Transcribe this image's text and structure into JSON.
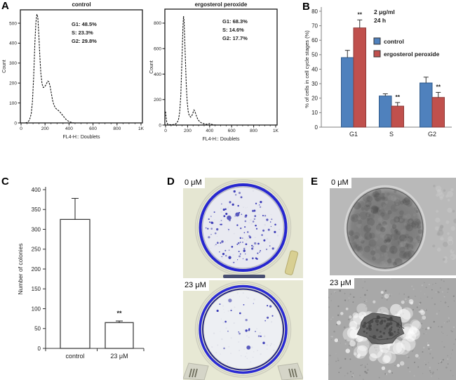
{
  "figure": {
    "panel_labels": {
      "A": "A",
      "B": "B",
      "C": "C",
      "D": "D",
      "E": "E"
    }
  },
  "chart_data": [
    {
      "id": "flow_control",
      "type": "area",
      "title": "control",
      "xlabel": "FL4-H:: Doublets",
      "ylabel": "Count",
      "xlim": [
        0,
        1000
      ],
      "ylim": [
        0,
        567
      ],
      "xticks": [
        {
          "v": 0,
          "label": "0"
        },
        {
          "v": 200,
          "label": "200"
        },
        {
          "v": 400,
          "label": "400"
        },
        {
          "v": 600,
          "label": "600"
        },
        {
          "v": 800,
          "label": "800"
        },
        {
          "v": 1000,
          "label": "1K"
        }
      ],
      "yticks": [
        0,
        100,
        200,
        300,
        400,
        500
      ],
      "annotations": [
        "G1: 48.5%",
        "S: 23.3%",
        "G2: 29.8%"
      ],
      "curve": [
        [
          38,
          0
        ],
        [
          55,
          4
        ],
        [
          70,
          14
        ],
        [
          85,
          45
        ],
        [
          95,
          105
        ],
        [
          105,
          230
        ],
        [
          115,
          400
        ],
        [
          124,
          505
        ],
        [
          132,
          545
        ],
        [
          140,
          530
        ],
        [
          148,
          445
        ],
        [
          156,
          340
        ],
        [
          165,
          250
        ],
        [
          175,
          196
        ],
        [
          185,
          178
        ],
        [
          196,
          180
        ],
        [
          208,
          192
        ],
        [
          222,
          210
        ],
        [
          232,
          206
        ],
        [
          242,
          184
        ],
        [
          252,
          150
        ],
        [
          262,
          116
        ],
        [
          272,
          94
        ],
        [
          285,
          76
        ],
        [
          298,
          68
        ],
        [
          312,
          62
        ],
        [
          328,
          52
        ],
        [
          344,
          40
        ],
        [
          360,
          28
        ],
        [
          376,
          17
        ],
        [
          392,
          10
        ],
        [
          408,
          5
        ],
        [
          424,
          2
        ],
        [
          440,
          0
        ]
      ]
    },
    {
      "id": "flow_ergosterol_peroxide",
      "type": "area",
      "title": "ergosterol peroxide",
      "xlabel": "FL4-H:: Doublets",
      "ylabel": "Count",
      "xlim": [
        0,
        1000
      ],
      "ylim": [
        0,
        910
      ],
      "xticks": [
        {
          "v": 0,
          "label": "0"
        },
        {
          "v": 200,
          "label": "200"
        },
        {
          "v": 400,
          "label": "400"
        },
        {
          "v": 600,
          "label": "600"
        },
        {
          "v": 800,
          "label": "800"
        },
        {
          "v": 1000,
          "label": "1K"
        }
      ],
      "yticks": [
        0,
        200,
        400,
        600,
        800
      ],
      "annotations": [
        "G1: 68.3%",
        "S: 14.6%",
        "G2: 17.7%"
      ],
      "curve": [
        [
          0,
          105
        ],
        [
          4,
          70
        ],
        [
          10,
          25
        ],
        [
          18,
          8
        ],
        [
          30,
          4
        ],
        [
          50,
          3
        ],
        [
          70,
          4
        ],
        [
          90,
          8
        ],
        [
          105,
          18
        ],
        [
          118,
          45
        ],
        [
          128,
          100
        ],
        [
          138,
          230
        ],
        [
          146,
          430
        ],
        [
          152,
          610
        ],
        [
          158,
          770
        ],
        [
          163,
          855
        ],
        [
          168,
          820
        ],
        [
          174,
          670
        ],
        [
          180,
          510
        ],
        [
          188,
          320
        ],
        [
          196,
          185
        ],
        [
          205,
          108
        ],
        [
          215,
          74
        ],
        [
          228,
          62
        ],
        [
          240,
          76
        ],
        [
          250,
          100
        ],
        [
          258,
          118
        ],
        [
          266,
          108
        ],
        [
          275,
          84
        ],
        [
          285,
          60
        ],
        [
          295,
          42
        ],
        [
          308,
          28
        ],
        [
          322,
          18
        ],
        [
          338,
          12
        ],
        [
          355,
          8
        ],
        [
          372,
          6
        ],
        [
          388,
          9
        ],
        [
          400,
          11
        ],
        [
          412,
          7
        ],
        [
          425,
          4
        ],
        [
          440,
          1
        ],
        [
          458,
          0
        ]
      ]
    },
    {
      "id": "cell_cycle_distribution",
      "type": "bar",
      "categories": [
        "G1",
        "S",
        "G2"
      ],
      "series": [
        {
          "name": "control",
          "color": "#4f81bd",
          "border": "#2f5a8c",
          "values": [
            48,
            21.5,
            30.5
          ],
          "errors": [
            5,
            1.5,
            4
          ],
          "sig": [
            "",
            "",
            ""
          ]
        },
        {
          "name": "ergosterol peroxide",
          "color": "#c0504d",
          "border": "#8e3a38",
          "values": [
            68.5,
            14.5,
            20.5
          ],
          "errors": [
            5.5,
            2.5,
            3.5
          ],
          "sig": [
            "**",
            "**",
            "**"
          ]
        }
      ],
      "ylabel": "% of cells in cell cycle stages (%)",
      "ylim": [
        0,
        80
      ],
      "ytick_step": 10,
      "note_lines": [
        "2 μg/ml",
        "24 h"
      ],
      "legend_position": "middle-left"
    },
    {
      "id": "colony_formation",
      "type": "bar",
      "categories": [
        "control",
        "23 μM"
      ],
      "values": [
        325,
        65
      ],
      "errors": [
        53,
        4
      ],
      "significance_marks": [
        "",
        "**"
      ],
      "ylabel": "Number of colonies",
      "ylim": [
        0,
        400
      ],
      "ytick_step": 50,
      "bar_fill": "#ffffff",
      "bar_border": "#404040"
    }
  ],
  "photos": {
    "D": {
      "images": [
        {
          "label": "0 μM",
          "approx_colony_dots": 115
        },
        {
          "label": "23 μM",
          "approx_colony_dots": 26
        }
      ]
    },
    "E": {
      "images": [
        {
          "label": "0 μM"
        },
        {
          "label": "23 μM"
        }
      ]
    }
  },
  "colors": {
    "control_bar": "#4f81bd",
    "treated_bar": "#c0504d",
    "colony_stain": "#3c3cae",
    "plate_ring": "#2626d0"
  }
}
